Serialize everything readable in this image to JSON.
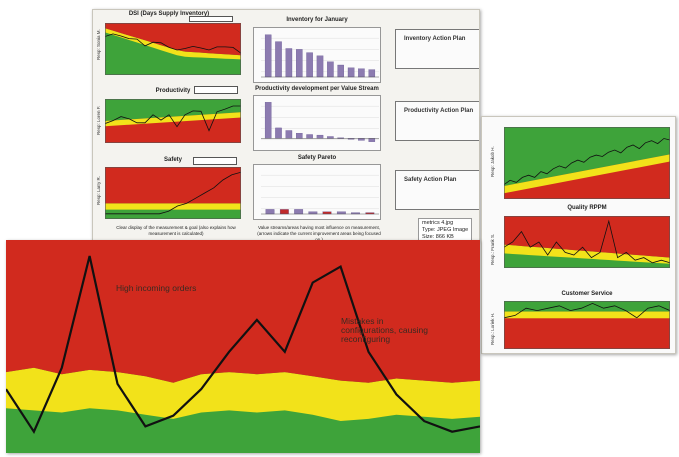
{
  "colors": {
    "red": "#d12a1e",
    "yellow": "#f2e21a",
    "green": "#3ea33a",
    "line": "#111111",
    "bar": "#8c7bb0",
    "bar_dark": "#5a4a8a"
  },
  "board": {
    "dsi": {
      "title": "DSI (Days Supply Inventory)",
      "axis": "Resp: Sonia M."
    },
    "productivity": {
      "title": "Productivity",
      "axis": "Resp: Loren F."
    },
    "safety": {
      "title": "Safety",
      "axis": "Resp: Larry R."
    },
    "inventory": {
      "title": "Inventory for January"
    },
    "prod_dev": {
      "title": "Productivity development per Value Stream"
    },
    "pareto": {
      "title": "Safety Pareto"
    },
    "caption_left": "Clear display of the measurement & goal (also explains how measurement is calculated)",
    "caption_right": "Value streams/areas having most influence on measurement, (arrows indicate the current improvement areas being focused on.)",
    "actions": [
      "Inventory Action Plan",
      "Productivity Action Plan",
      "Safety Action Plan"
    ]
  },
  "image_info": {
    "line1": "metrics 4.jpg",
    "line2": "Type: JPEG Image",
    "line3": "Size: 866 KB"
  },
  "right_panel": {
    "top_axis": "Resp: Jakob H.",
    "quality": {
      "title": "Quality RPPM",
      "axis": "Resp.: Frank S."
    },
    "customer": {
      "title": "Customer Service",
      "axis": "Resp.: Loriek H."
    }
  },
  "zoom_annotations": {
    "a1": "High incoming orders",
    "a2": "Mistakes in configurations, causing reconfiguring"
  },
  "chart_data": [
    {
      "type": "line",
      "id": "zoom",
      "title": "",
      "series": [
        {
          "values": [
            1.2,
            0.4,
            1.6,
            3.7,
            1.3,
            0.5,
            0.7,
            1.2,
            1.9,
            2.5,
            1.9,
            3.2,
            3.5,
            1.9,
            1.1,
            0.6,
            0.4,
            0.5
          ]
        }
      ],
      "ylim": [
        0,
        4
      ]
    },
    {
      "type": "line",
      "id": "dsi",
      "series": [
        {
          "values": [
            7.4,
            7.9,
            7.5,
            7.0,
            6.9,
            5.6,
            6.3,
            6.2,
            5.3,
            4.8,
            5.1,
            5.5,
            5.2,
            4.8,
            5.4,
            5.4,
            5.3,
            4.2
          ]
        }
      ],
      "ylim": [
        0,
        10
      ]
    },
    {
      "type": "line",
      "id": "productivity",
      "series": [
        {
          "values": [
            4.4,
            5.1,
            6.0,
            5.5,
            4.6,
            4.6,
            6.4,
            5.2,
            6.4,
            3.7,
            6.4,
            7.3,
            7.2,
            2.8,
            7.1,
            7.7,
            8.4,
            8.4
          ]
        }
      ],
      "ylim": [
        0,
        10
      ]
    },
    {
      "type": "line",
      "id": "safety",
      "series": [
        {
          "values": [
            1.0,
            1.0,
            1.0,
            1.0,
            1.0,
            1.0,
            1.0,
            1.5,
            2.5,
            3.0,
            4.0,
            5.0,
            6.0,
            7.5,
            8.5,
            9.0
          ]
        }
      ],
      "ylim": [
        0,
        10
      ]
    },
    {
      "type": "bar",
      "id": "inventory",
      "values": [
        9.2,
        7.7,
        6.2,
        6.0,
        5.3,
        4.6,
        3.3,
        2.6,
        2.0,
        1.8,
        1.6
      ],
      "ylim": [
        0,
        10
      ]
    },
    {
      "type": "bar",
      "id": "prod_dev",
      "values": [
        5.5,
        1.6,
        1.2,
        0.8,
        0.6,
        0.5,
        0.3,
        0.1,
        -0.1,
        -0.3,
        -0.5
      ],
      "ylim": [
        -1,
        6
      ]
    },
    {
      "type": "bar",
      "id": "pareto",
      "values": [
        1.0,
        1.0,
        1.0,
        0.5,
        0.5,
        0.5,
        0.3,
        0.3
      ],
      "ylim": [
        0,
        10
      ]
    },
    {
      "type": "line",
      "id": "right_top",
      "series": [
        {
          "values": [
            2.0,
            2.6,
            2.3,
            3.0,
            3.3,
            3.0,
            3.8,
            3.5,
            4.2,
            4.6,
            4.3,
            5.0,
            5.4,
            5.1,
            5.8,
            6.1,
            5.9,
            6.5,
            6.8,
            6.4,
            7.2,
            7.5,
            7.0,
            7.8,
            8.1,
            7.7,
            8.4,
            8.2
          ]
        }
      ],
      "ylim": [
        0,
        10
      ]
    },
    {
      "type": "line",
      "id": "quality",
      "series": [
        {
          "values": [
            4.0,
            5.0,
            7.0,
            4.0,
            5.0,
            2.5,
            5.0,
            3.0,
            2.5,
            4.0,
            2.0,
            3.0,
            9.0,
            2.0,
            3.0,
            1.5,
            2.0,
            1.0,
            1.5,
            1.0
          ]
        }
      ],
      "ylim": [
        0,
        10
      ]
    },
    {
      "type": "line",
      "id": "customer",
      "series": [
        {
          "values": [
            6.5,
            7.0,
            8.5,
            8.0,
            8.5,
            9.0,
            8.0,
            8.5,
            9.5,
            8.5,
            9.0,
            8.0,
            6.5,
            8.5,
            9.0,
            8.0
          ]
        }
      ],
      "ylim": [
        0,
        10
      ]
    }
  ]
}
